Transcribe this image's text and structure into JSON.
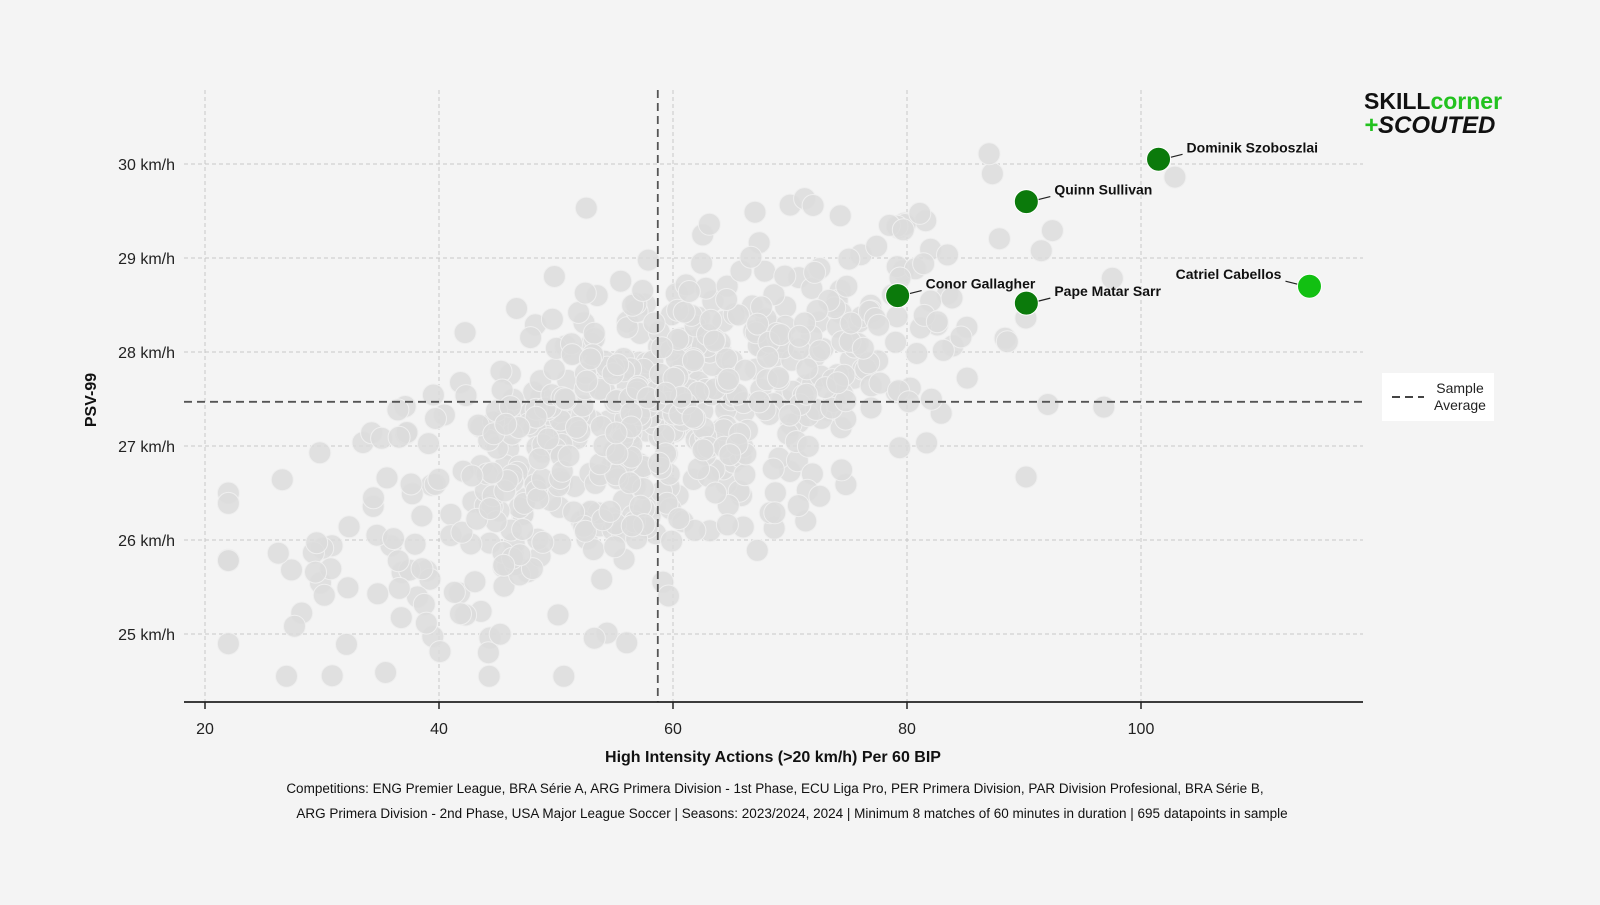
{
  "chart_data": {
    "type": "scatter",
    "xlabel": "High Intensity Actions (>20 km/h) Per 60 BIP",
    "ylabel": "PSV-99",
    "xlim": [
      18,
      118
    ],
    "ylim": [
      24.3,
      31.0
    ],
    "x_ticks": [
      20,
      40,
      60,
      80,
      100
    ],
    "y_ticks": [
      25,
      26,
      27,
      28,
      29,
      30
    ],
    "y_tick_labels": [
      "25 km/h",
      "26 km/h",
      "27 km/h",
      "28 km/h",
      "29 km/h",
      "30 km/h"
    ],
    "grid": true,
    "sample_average": {
      "x": 58.7,
      "y": 27.47,
      "legend_label_line1": "Sample",
      "legend_label_line2": "Average"
    },
    "legend_position": "right",
    "background_sample_count": 695,
    "highlighted": [
      {
        "name": "Dominik Szoboszlai",
        "x": 101.5,
        "y": 30.05,
        "color": "#0b7a0b"
      },
      {
        "name": "Quinn Sullivan",
        "x": 90.2,
        "y": 29.6,
        "color": "#0b7a0b"
      },
      {
        "name": "Conor Gallagher",
        "x": 79.2,
        "y": 28.6,
        "color": "#0b7a0b"
      },
      {
        "name": "Pape Matar Sarr",
        "x": 90.2,
        "y": 28.52,
        "color": "#0b7a0b"
      },
      {
        "name": "Catriel Cabellos",
        "x": 114.4,
        "y": 28.7,
        "color": "#12c012"
      }
    ],
    "background_color": "#dcdcdc",
    "footnote_line1": "Competitions: ENG Premier League, BRA Série A, ARG Primera Division - 1st Phase, ECU Liga Pro, PER Primera Division, PAR Division Profesional, BRA Série B,",
    "footnote_line2": "ARG Primera Division - 2nd Phase, USA Major League Soccer | Seasons: 2023/2024, 2024 | Minimum 8 matches of 60 minutes in duration | 695 datapoints in sample"
  },
  "logo": {
    "part1": "SKILL",
    "part2": "corner",
    "part3": "+",
    "part4": "SCOUTED",
    "color_dark": "#111111",
    "color_green": "#22c21e"
  }
}
